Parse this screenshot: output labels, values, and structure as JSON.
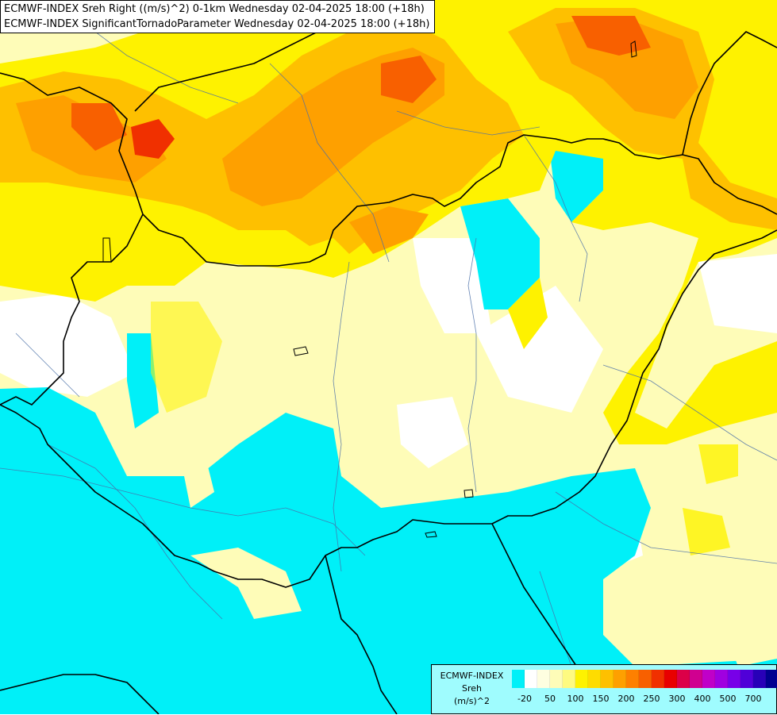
{
  "title_lines": [
    "ECMWF-INDEX Sreh Right ((m/s)^2) 0-1km Wednesday 02-04-2025 18:00 (+18h)",
    "ECMWF-INDEX SignificantTornadoParameter Wednesday 02-04-2025 18:00 (+18h)"
  ],
  "legend": {
    "source": "ECMWF-INDEX",
    "variable": "Sreh",
    "unit": "(m/s)^2",
    "colors": [
      "#00f0f8",
      "#ffffff",
      "#fefee0",
      "#fefcb8",
      "#fefa80",
      "#fef200",
      "#fedc00",
      "#fec000",
      "#fea000",
      "#fe8000",
      "#f86000",
      "#f03000",
      "#e80000",
      "#dc0048",
      "#d00090",
      "#c000c8",
      "#a000e0",
      "#7800e8",
      "#5000d8",
      "#2800b8",
      "#000090"
    ],
    "ticks": [
      "-20",
      "50",
      "100",
      "150",
      "200",
      "250",
      "300",
      "400",
      "500",
      "700"
    ]
  }
}
